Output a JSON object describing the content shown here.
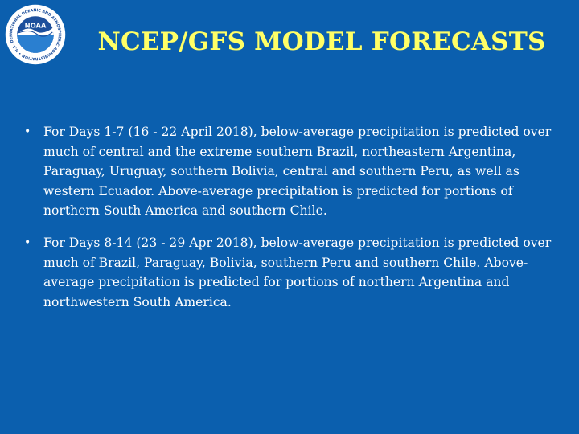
{
  "header": {
    "title": "NCEP/GFS MODEL FORECASTS",
    "logo": {
      "icon": "noaa-logo",
      "wordmark": "NOAA",
      "ring_text": "NATIONAL OCEANIC AND ATMOSPHERIC ADMINISTRATION • U.S. DEPARTMENT OF COMMERCE •"
    }
  },
  "bullets": [
    {
      "text": "For Days 1-7 (16 - 22 April 2018), below-average precipitation is predicted over much of central and the extreme southern Brazil, northeastern Argentina, Paraguay, Uruguay, southern Bolivia, central and southern Peru, as well as western Ecuador. Above-average precipitation is predicted for portions of northern South America and southern Chile."
    },
    {
      "text": "For Days 8-14 (23 - 29 Apr 2018), below-average precipitation is predicted over much of Brazil, Paraguay, Bolivia, southern Peru and southern Chile. Above-average precipitation is predicted for portions of northern Argentina and northwestern South America."
    }
  ],
  "colors": {
    "background": "#0b5fae",
    "title": "#ffff66",
    "body_text": "#ffffff"
  }
}
